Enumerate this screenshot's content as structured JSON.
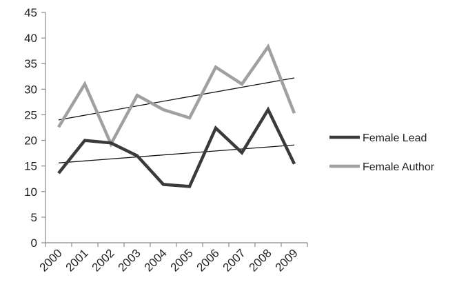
{
  "chart_data": {
    "type": "line",
    "categories": [
      "2000",
      "2001",
      "2002",
      "2003",
      "2004",
      "2005",
      "2006",
      "2007",
      "2008",
      "2009"
    ],
    "ylim": [
      0,
      45
    ],
    "yticks": [
      "0",
      "5",
      "10",
      "15",
      "20",
      "25",
      "30",
      "35",
      "40",
      "45"
    ],
    "grid": false,
    "legend_position": "right",
    "series": [
      {
        "name": "Female Lead",
        "color": "#3a3a3a",
        "values": [
          13.6,
          20.0,
          19.5,
          17.0,
          11.4,
          11.0,
          22.4,
          17.6,
          26.0,
          15.4
        ],
        "trendline": [
          15.6,
          19.1
        ]
      },
      {
        "name": "Female Author",
        "color": "#a0a0a0",
        "values": [
          22.6,
          31.0,
          19.3,
          28.8,
          26.0,
          24.4,
          34.3,
          31.0,
          38.3,
          25.3
        ],
        "trendline": [
          24.0,
          32.2
        ]
      }
    ],
    "trendline_color": "#111111"
  }
}
